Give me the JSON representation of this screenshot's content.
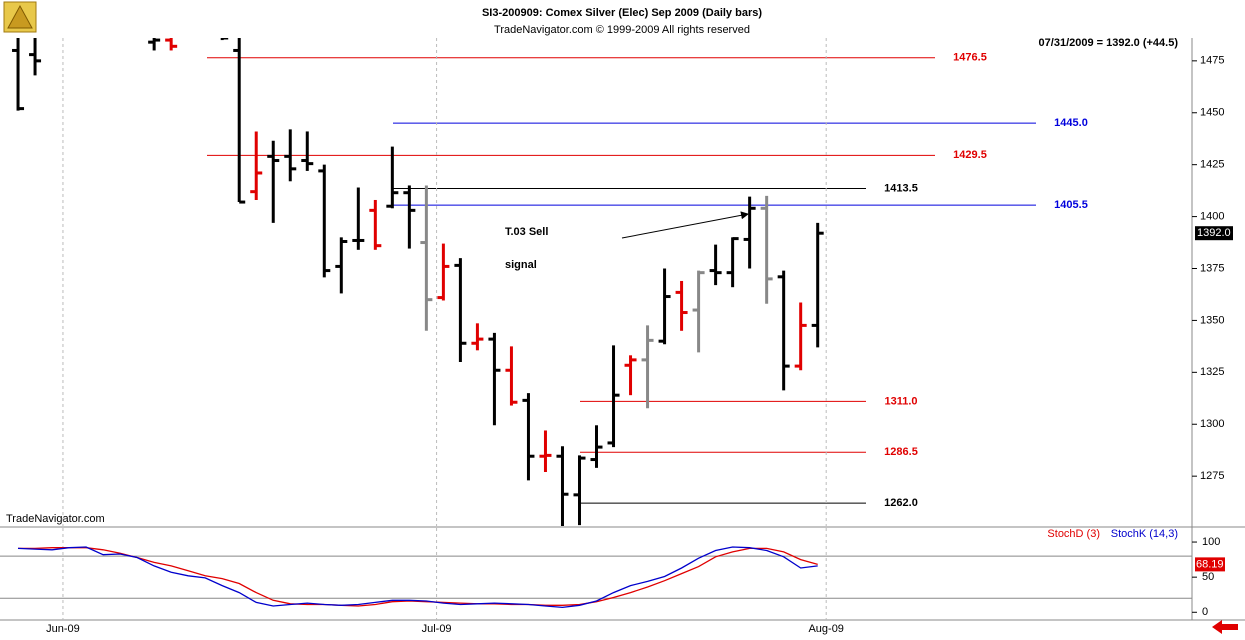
{
  "chart_data": [
    {
      "type": "ohlc",
      "title": "SI3-200909:  Comex Silver (Elec) Sep 2009  (Daily bars)",
      "subtitle": "TradeNavigator.com © 1999-2009 All rights reserved",
      "info": "07/31/2009 = 1392.0 (+44.5)",
      "watermark": "TradeNavigator.com",
      "annotation": [
        "T.03 Sell",
        "signal"
      ],
      "x": [
        0,
        1,
        2,
        3,
        4,
        5,
        6,
        7,
        8,
        9,
        10,
        11,
        12,
        13,
        14,
        15,
        16,
        17,
        18,
        19,
        20,
        21,
        22,
        23,
        24,
        25,
        26,
        27,
        28,
        29,
        30,
        31,
        32,
        33,
        34,
        35,
        36,
        37,
        38,
        39,
        40,
        41,
        42,
        43,
        44,
        45,
        46,
        47
      ],
      "xlim": [
        -1.06,
        69
      ],
      "open": [
        1480,
        1478,
        null,
        null,
        null,
        null,
        null,
        null,
        1484,
        1485,
        null,
        null,
        1488,
        1480,
        1412,
        1429,
        1429,
        1427,
        1422,
        1376,
        1388.5,
        1403,
        1405,
        1411.5,
        1387.5,
        1361,
        1376.5,
        1339,
        1341,
        1326,
        1311.5,
        1284.6,
        1284.6,
        1266,
        1283,
        1291,
        1328.4,
        1331,
        1340,
        1363.5,
        1355,
        1374,
        1373,
        1389,
        1404,
        1371,
        1328,
        1347.6
      ],
      "high": [
        1490,
        1490,
        null,
        null,
        null,
        null,
        null,
        null,
        1490,
        1490,
        null,
        null,
        1490,
        1490,
        1441,
        1436.5,
        1442,
        1441,
        1425,
        1390,
        1414,
        1408,
        1433.7,
        1415,
        1415,
        1387,
        1380,
        1348.6,
        1344,
        1337.5,
        1315,
        1297,
        1289.4,
        1285,
        1299.5,
        1338,
        1333.2,
        1347.6,
        1375,
        1369,
        1374,
        1386.5,
        1390,
        1409.6,
        1410,
        1374,
        1358.6,
        1397
      ],
      "low": [
        1451,
        1468,
        null,
        null,
        null,
        null,
        null,
        null,
        1480,
        1480,
        null,
        null,
        1485,
        1407,
        1408,
        1397,
        1417,
        1422,
        1370.7,
        1363,
        1384,
        1384,
        1404,
        1384.6,
        1345,
        1359.6,
        1330,
        1335.6,
        1299.5,
        1309,
        1273,
        1277,
        1249,
        1251.4,
        1279,
        1289,
        1314,
        1307.7,
        1338.5,
        1345,
        1334.6,
        1367,
        1366,
        1375,
        1358,
        1316.3,
        1326,
        1337
      ],
      "close": [
        1452,
        1475,
        null,
        null,
        null,
        null,
        null,
        null,
        1485,
        1482,
        null,
        null,
        1486,
        1407,
        1421,
        1427,
        1423,
        1425.5,
        1374,
        1388,
        1388.5,
        1386,
        1411.5,
        1403,
        1360,
        1376,
        1339,
        1341,
        1326,
        1310.6,
        1284.6,
        1285,
        1266.3,
        1283.7,
        1289,
        1314,
        1331,
        1340.4,
        1361.5,
        1353.8,
        1373,
        1373,
        1389.4,
        1404,
        1370,
        1328,
        1347.6,
        1392
      ],
      "bar_colors": [
        "#000000",
        "#000000",
        null,
        null,
        null,
        null,
        null,
        null,
        "#000000",
        "#e00000",
        null,
        null,
        "#000000",
        "#000000",
        "#e00000",
        "#000000",
        "#000000",
        "#000000",
        "#000000",
        "#000000",
        "#000000",
        "#e00000",
        "#000000",
        "#000000",
        "#888888",
        "#e00000",
        "#000000",
        "#e00000",
        "#000000",
        "#e00000",
        "#000000",
        "#e00000",
        "#000000",
        "#000000",
        "#000000",
        "#000000",
        "#e00000",
        "#888888",
        "#000000",
        "#e00000",
        "#888888",
        "#000000",
        "#000000",
        "#000000",
        "#888888",
        "#000000",
        "#e00000",
        "#000000"
      ],
      "ylim": [
        1251,
        1486
      ],
      "yticks": [
        1275,
        1300,
        1325,
        1350,
        1375,
        1400,
        1425,
        1450,
        1475
      ],
      "last_price": {
        "value": 1392.0,
        "label": "1392.0"
      },
      "levels": [
        {
          "value": 1476.5,
          "label": "1476.5",
          "color": "#e00000"
        },
        {
          "value": 1445.0,
          "label": "1445.0",
          "color": "#0000dd"
        },
        {
          "value": 1429.5,
          "label": "1429.5",
          "color": "#e00000"
        },
        {
          "value": 1413.5,
          "label": "1413.5",
          "color": "#000000"
        },
        {
          "value": 1405.5,
          "label": "1405.5",
          "color": "#0000dd"
        },
        {
          "value": 1311.0,
          "label": "1311.0",
          "color": "#e00000"
        },
        {
          "value": 1286.5,
          "label": "1286.5",
          "color": "#e00000"
        },
        {
          "value": 1262.0,
          "label": "1262.0",
          "color": "#000000"
        }
      ]
    },
    {
      "type": "line",
      "x": [
        0,
        1,
        2,
        3,
        4,
        5,
        6,
        7,
        8,
        9,
        10,
        11,
        12,
        13,
        14,
        15,
        16,
        17,
        18,
        19,
        20,
        21,
        22,
        23,
        24,
        25,
        26,
        27,
        28,
        29,
        30,
        31,
        32,
        33,
        34,
        35,
        36,
        37,
        38,
        39,
        40,
        41,
        42,
        43,
        44,
        45,
        46,
        47
      ],
      "xlim": [
        -1.06,
        69
      ],
      "xticks": [
        {
          "value": 2.64,
          "label": "Jun-09"
        },
        {
          "value": 24.6,
          "label": "Jul-09"
        },
        {
          "value": 47.5,
          "label": "Aug-09"
        }
      ],
      "ylim": [
        -11,
        120
      ],
      "yticks": [
        0,
        50,
        100
      ],
      "bands": [
        20,
        80
      ],
      "series": [
        {
          "name": "StochD (3)",
          "color": "#e00000",
          "values": [
            91,
            91,
            92,
            92,
            92,
            89,
            84,
            78,
            71,
            66,
            59,
            52,
            48,
            41,
            28,
            17,
            12,
            11,
            11,
            10,
            9,
            11,
            15,
            16,
            15,
            14,
            13,
            12,
            12,
            11,
            11,
            10,
            10,
            11,
            15,
            21,
            28,
            36,
            45,
            55,
            65,
            79,
            86,
            91,
            91,
            86,
            75,
            68.19
          ]
        },
        {
          "name": "StochK (14,3)",
          "color": "#0000cc",
          "values": [
            91,
            90,
            89,
            92,
            93,
            82,
            83,
            78,
            66,
            57,
            52,
            49,
            38,
            28,
            14,
            9,
            11,
            13,
            11,
            10,
            11,
            14,
            17,
            17,
            16,
            13,
            11,
            12,
            13,
            12,
            11,
            9,
            7,
            10,
            16,
            28,
            38,
            44,
            51,
            63,
            77,
            88,
            93,
            92,
            88,
            79,
            63,
            66
          ]
        }
      ],
      "last_label": {
        "value": 68.19,
        "label": "68.19"
      }
    }
  ]
}
